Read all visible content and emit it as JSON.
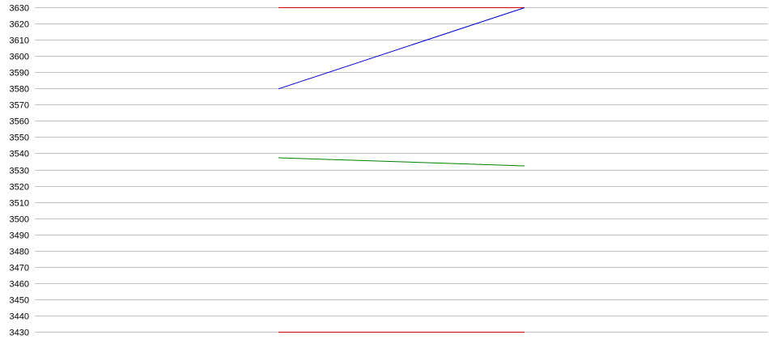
{
  "chart_data": {
    "type": "line",
    "title": "",
    "xlabel": "",
    "ylabel": "",
    "ylim": [
      3430,
      3630
    ],
    "yticks": [
      3630,
      3620,
      3610,
      3600,
      3590,
      3580,
      3570,
      3560,
      3550,
      3540,
      3530,
      3520,
      3510,
      3500,
      3490,
      3480,
      3470,
      3460,
      3450,
      3440,
      3430
    ],
    "grid": true,
    "legend": "none",
    "x": [
      1,
      2
    ],
    "series": [
      {
        "color": "#cc0000",
        "values": [
          3630,
          3630
        ]
      },
      {
        "color": "#0000cc",
        "values": [
          3580,
          3630
        ]
      },
      {
        "color": "#008000",
        "values": [
          3537.5,
          3532.5
        ]
      },
      {
        "color": "#cc0000",
        "values": [
          3430,
          3430
        ]
      }
    ]
  }
}
